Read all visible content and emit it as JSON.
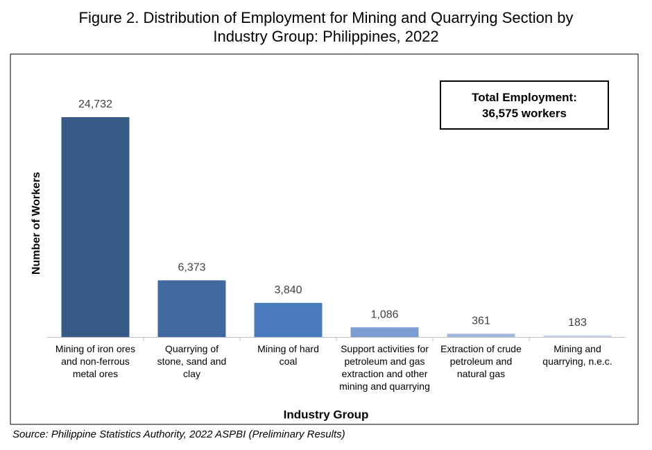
{
  "chart_data": {
    "type": "bar",
    "title": "Figure 2. Distribution of Employment for Mining and Quarrying Section by Industry Group: Philippines, 2022",
    "x_label": "Industry Group",
    "y_label": "Number of Workers",
    "annotation": "Total Employment: 36,575 workers",
    "source": "Source: Philippine Statistics Authority, 2022 ASPBI (Preliminary Results)",
    "categories": [
      "Mining of iron ores and non-ferrous metal ores",
      "Quarrying of stone, sand and clay",
      "Mining of hard coal",
      "Support activities for petroleum and gas extraction and other mining and quarrying",
      "Extraction of crude petroleum and natural gas",
      "Mining and quarrying, n.e.c."
    ],
    "values": [
      24732,
      6373,
      3840,
      1086,
      361,
      183
    ],
    "value_labels": [
      "24,732",
      "6,373",
      "3,840",
      "1,086",
      "361",
      "183"
    ],
    "colors": [
      "#375b87",
      "#4169a0",
      "#4a7cbd",
      "#7b9dd0",
      "#a1b8de",
      "#c7d5ec"
    ]
  }
}
